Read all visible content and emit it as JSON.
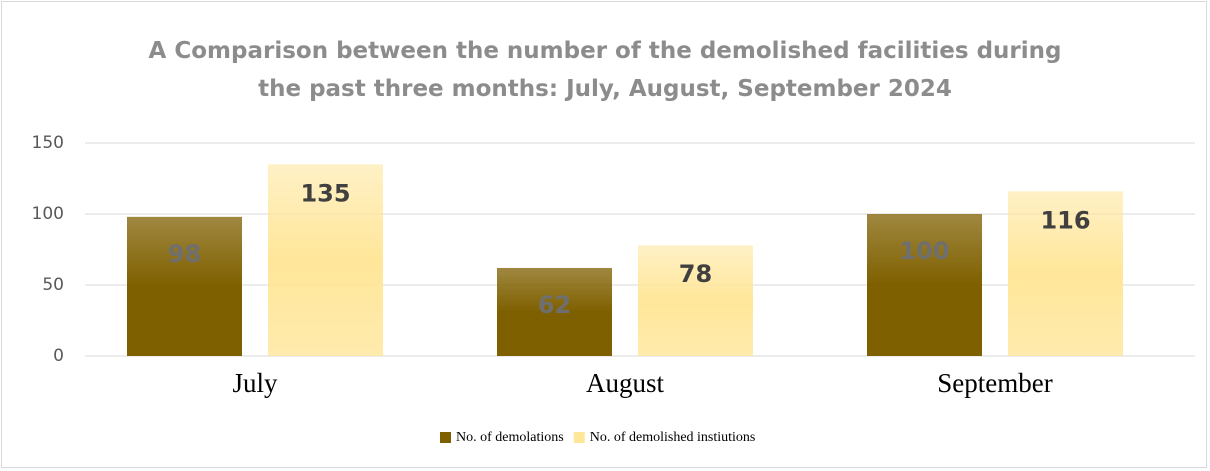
{
  "chart_data": {
    "type": "bar",
    "title": "A Comparison between the number of the demolished facilities during the past three months: July, August, September 2024",
    "categories": [
      "July",
      "August",
      "September"
    ],
    "series": [
      {
        "name": "No. of demolations",
        "color": "#7f6000",
        "values": [
          98,
          62,
          100
        ]
      },
      {
        "name": "No. of  demolished instiutions",
        "color": "#ffe699",
        "values": [
          135,
          78,
          116
        ]
      }
    ],
    "ylim": [
      0,
      150
    ],
    "yticks": [
      0,
      50,
      100,
      150
    ],
    "grid": true,
    "legend": "bottom"
  }
}
